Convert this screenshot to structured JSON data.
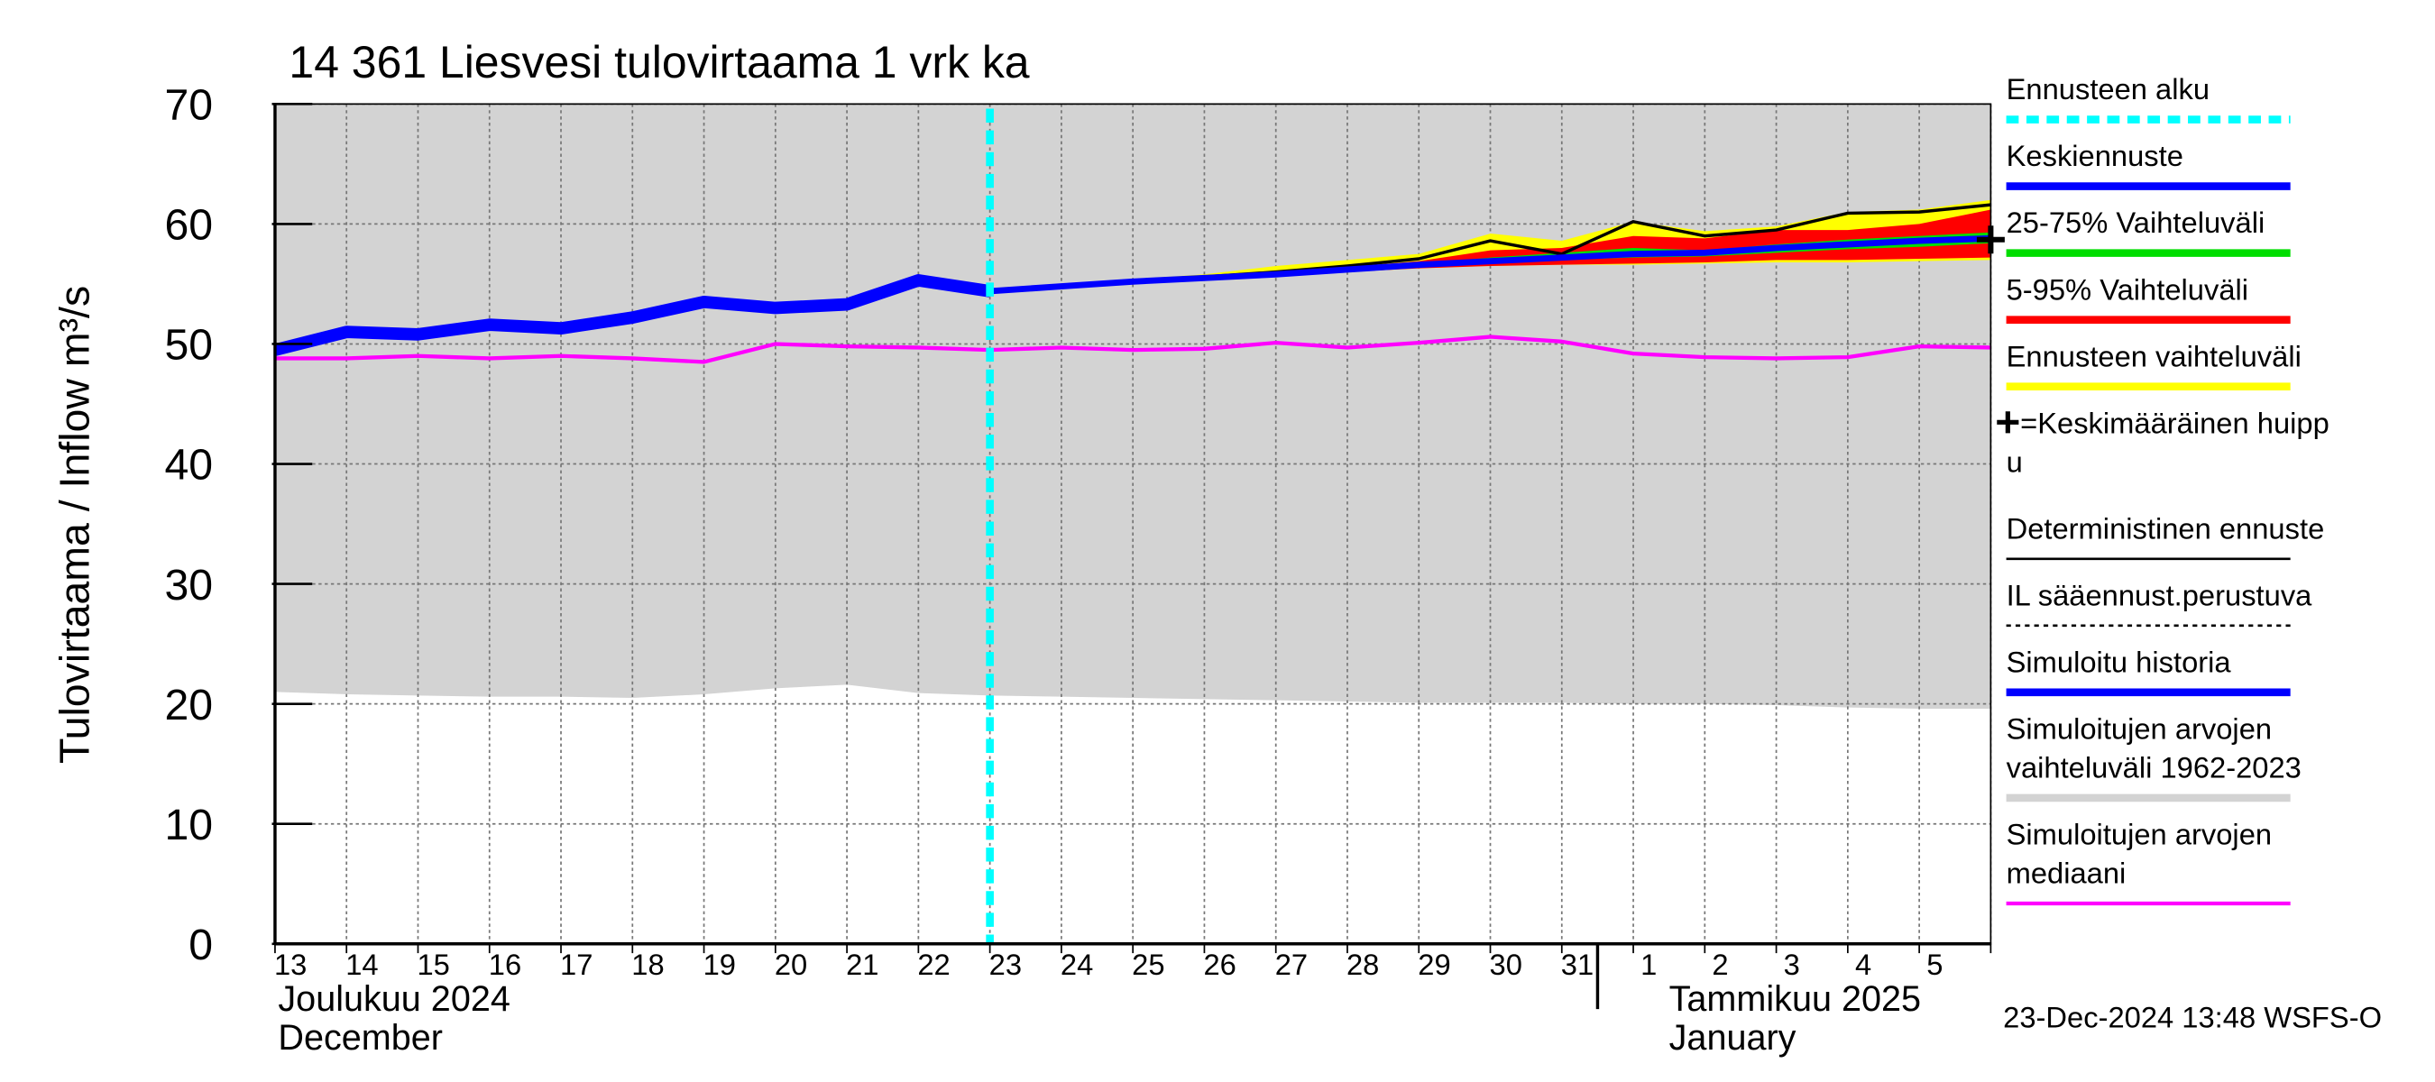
{
  "chart_data": {
    "type": "line",
    "title": "14 361 Liesvesi tulovirtaama 1 vrk ka",
    "y_label": "Tulovirtaama / Inflow    m³/s",
    "categories": [
      "13",
      "14",
      "15",
      "16",
      "17",
      "18",
      "19",
      "20",
      "21",
      "22",
      "23",
      "24",
      "25",
      "26",
      "27",
      "28",
      "29",
      "30",
      "31",
      "1",
      "2",
      "3",
      "4",
      "5",
      null
    ],
    "ylim": [
      0,
      70
    ],
    "yticks": [
      0,
      10,
      20,
      30,
      40,
      50,
      60,
      70
    ],
    "grid": true,
    "forecast_start": "23",
    "months": [
      {
        "lines": [
          "Joulukuu  2024",
          "December"
        ]
      },
      {
        "lines": [
          "Tammikuu  2025",
          "January"
        ]
      }
    ],
    "timestamp": "23-Dec-2024 13:48 WSFS-O",
    "series": [
      {
        "kind": "band",
        "color": "#d3d3d3",
        "upper": [
          70,
          70,
          70,
          70,
          70,
          70,
          70,
          70,
          70,
          70,
          70,
          70,
          70,
          70,
          70,
          70,
          70,
          70,
          70,
          70,
          70,
          70,
          70,
          70,
          70
        ],
        "lower": [
          21,
          20.8,
          20.7,
          20.6,
          20.6,
          20.5,
          20.8,
          21.3,
          21.6,
          20.9,
          20.7,
          20.6,
          20.5,
          20.4,
          20.3,
          20.2,
          20.1,
          20.1,
          20.1,
          20.0,
          20.0,
          19.9,
          19.7,
          19.6,
          19.6
        ]
      },
      {
        "kind": "line",
        "color": "#ff00ff",
        "width": 2.5,
        "values": [
          48.8,
          48.8,
          49,
          48.8,
          49,
          48.8,
          48.5,
          50,
          49.8,
          49.7,
          49.5,
          49.7,
          49.5,
          49.6,
          50.1,
          49.7,
          50.1,
          50.6,
          50.2,
          49.2,
          48.9,
          48.8,
          48.9,
          49.8,
          49.7
        ]
      },
      {
        "kind": "band",
        "color": "#ffff00",
        "upper": [
          null,
          null,
          null,
          null,
          null,
          null,
          null,
          null,
          null,
          null,
          54.4,
          55,
          55.4,
          55.8,
          56.5,
          57,
          57.5,
          59.2,
          58.6,
          60.2,
          59.4,
          59.8,
          61,
          61.2,
          62
        ],
        "lower": [
          null,
          null,
          null,
          null,
          null,
          null,
          null,
          null,
          null,
          null,
          54.4,
          54.7,
          55,
          55.3,
          55.6,
          56,
          56.3,
          56.5,
          56.6,
          56.6,
          56.7,
          56.8,
          56.8,
          56.9,
          57
        ]
      },
      {
        "kind": "band",
        "color": "#ff0000",
        "upper": [
          null,
          null,
          null,
          null,
          null,
          null,
          null,
          null,
          null,
          null,
          54.4,
          54.9,
          55.3,
          55.6,
          56,
          56.4,
          56.9,
          57.8,
          58,
          59,
          58.8,
          59.5,
          59.5,
          60,
          61.2
        ],
        "lower": [
          null,
          null,
          null,
          null,
          null,
          null,
          null,
          null,
          null,
          null,
          54.4,
          54.7,
          55,
          55.3,
          55.6,
          56,
          56.3,
          56.5,
          56.6,
          56.7,
          56.8,
          57,
          57,
          57.1,
          57.2
        ]
      },
      {
        "kind": "band",
        "color": "#00dd00",
        "upper": [
          null,
          null,
          null,
          null,
          null,
          null,
          null,
          null,
          null,
          null,
          54.4,
          54.8,
          55.2,
          55.5,
          55.9,
          56.3,
          56.7,
          57.2,
          57.6,
          58,
          57.8,
          58.3,
          58.7,
          59,
          59.3
        ],
        "lower": [
          null,
          null,
          null,
          null,
          null,
          null,
          null,
          null,
          null,
          null,
          54.4,
          54.7,
          55.1,
          55.4,
          55.7,
          56.1,
          56.5,
          56.8,
          57,
          57.2,
          57.3,
          57.6,
          57.9,
          58.1,
          58.4
        ]
      },
      {
        "kind": "line",
        "color": "#000000",
        "width": 2,
        "values": [
          null,
          null,
          null,
          null,
          null,
          null,
          null,
          null,
          null,
          null,
          54.4,
          54.9,
          55.3,
          55.6,
          56,
          56.5,
          57.1,
          58.6,
          57.5,
          60.2,
          59,
          59.5,
          60.9,
          61,
          61.6
        ]
      },
      {
        "kind": "line",
        "color": "#0000ff",
        "width": 8,
        "values": [
          49.5,
          51,
          50.8,
          51.6,
          51.3,
          52.2,
          53.5,
          53,
          53.3,
          55.3,
          54.4,
          null,
          null,
          null,
          null,
          null,
          null,
          null,
          null,
          null,
          null,
          null,
          null,
          null,
          null
        ]
      },
      {
        "kind": "line",
        "color": "#0000ff",
        "width": 4,
        "values": [
          null,
          null,
          null,
          null,
          null,
          null,
          null,
          null,
          null,
          null,
          54.4,
          54.8,
          55.2,
          55.5,
          55.8,
          56.2,
          56.6,
          56.9,
          57.2,
          57.5,
          57.6,
          58,
          58.3,
          58.6,
          58.8
        ]
      }
    ],
    "peak": {
      "value": 58.7,
      "color": "#000000"
    },
    "legend": [
      {
        "lines": [
          "Ennusteen alku"
        ],
        "color": "#00ffff",
        "dash": true,
        "width": 5
      },
      {
        "lines": [
          "Keskiennuste"
        ],
        "color": "#0000ff",
        "width": 5
      },
      {
        "lines": [
          "25-75% Vaihteluväli"
        ],
        "color": "#00dd00",
        "width": 5
      },
      {
        "lines": [
          "5-95% Vaihteluväli"
        ],
        "color": "#ff0000",
        "width": 5
      },
      {
        "lines": [
          "Ennusteen vaihteluväli"
        ],
        "color": "#ffff00",
        "width": 5
      },
      {
        "lines": [
          "=Keskimääräinen huipp",
          "u"
        ],
        "color": null
      },
      {
        "lines": [
          "Deterministinen ennuste"
        ],
        "color": "#000000",
        "width": 1.5
      },
      {
        "lines": [
          "IL sääennust.perustuva"
        ],
        "color": "#000000",
        "dash": true,
        "width": 1.5
      },
      {
        "lines": [
          "Simuloitu historia"
        ],
        "color": "#0000ff",
        "width": 5
      },
      {
        "lines": [
          "Simuloitujen arvojen",
          "vaihteluväli 1962-2023"
        ],
        "color": "#d3d3d3",
        "width": 5
      },
      {
        "lines": [
          "Simuloitujen arvojen",
          "mediaani"
        ],
        "color": "#ff00ff",
        "width": 2.5
      }
    ]
  }
}
